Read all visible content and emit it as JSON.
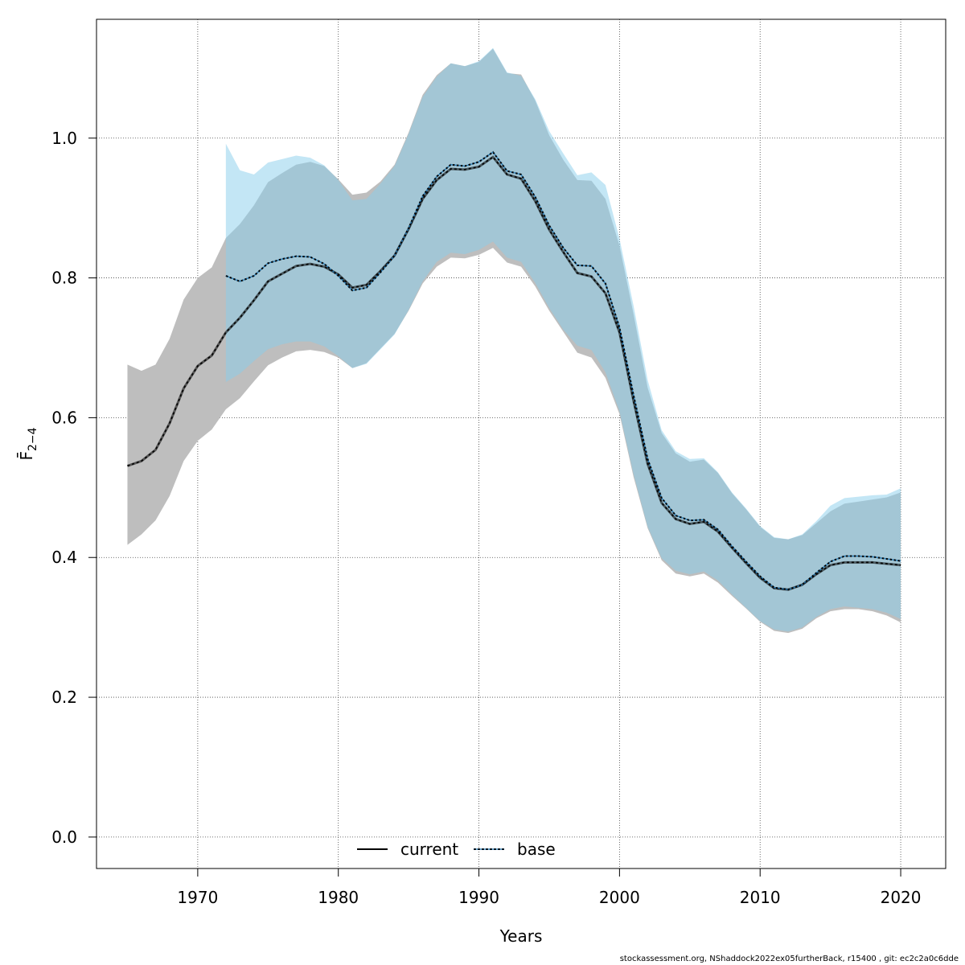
{
  "chart_data": {
    "type": "area",
    "xlabel": "Years",
    "ylabel": "F̄",
    "ylabel_subscript": "2−4",
    "xlim": [
      1962.8,
      2023.2
    ],
    "ylim": [
      -0.045,
      1.17
    ],
    "xticks": [
      1970,
      1980,
      1990,
      2000,
      2010,
      2020
    ],
    "yticks": [
      0.0,
      0.2,
      0.4,
      0.6,
      0.8,
      1.0
    ],
    "xtick_labels": [
      "1970",
      "1980",
      "1990",
      "2000",
      "2010",
      "2020"
    ],
    "ytick_labels": [
      "0.0",
      "0.2",
      "0.4",
      "0.6",
      "0.8",
      "1.0"
    ],
    "grid": true,
    "legend_position": "bottom-center",
    "colors": {
      "current_band": "#bebebe",
      "base_band": "#87CEEB",
      "overlap_band": "#a3c1d1",
      "current_line": "#000000",
      "base_line_dash": "#1f77b4"
    },
    "series": [
      {
        "name": "current",
        "style": "solid",
        "x": [
          1965,
          1966,
          1967,
          1968,
          1969,
          1970,
          1971,
          1972,
          1973,
          1974,
          1975,
          1976,
          1977,
          1978,
          1979,
          1980,
          1981,
          1982,
          1983,
          1984,
          1985,
          1986,
          1987,
          1988,
          1989,
          1990,
          1991,
          1992,
          1993,
          1994,
          1995,
          1996,
          1997,
          1998,
          1999,
          2000,
          2001,
          2002,
          2003,
          2004,
          2005,
          2006,
          2007,
          2008,
          2009,
          2010,
          2011,
          2012,
          2013,
          2014,
          2015,
          2016,
          2017,
          2018,
          2019,
          2020
        ],
        "y": [
          0.531,
          0.538,
          0.554,
          0.592,
          0.642,
          0.674,
          0.689,
          0.722,
          0.743,
          0.768,
          0.795,
          0.806,
          0.817,
          0.82,
          0.816,
          0.805,
          0.786,
          0.79,
          0.81,
          0.832,
          0.87,
          0.913,
          0.94,
          0.956,
          0.955,
          0.959,
          0.973,
          0.948,
          0.942,
          0.91,
          0.869,
          0.837,
          0.807,
          0.802,
          0.778,
          0.722,
          0.624,
          0.534,
          0.478,
          0.455,
          0.448,
          0.451,
          0.437,
          0.414,
          0.392,
          0.371,
          0.356,
          0.354,
          0.361,
          0.376,
          0.389,
          0.393,
          0.393,
          0.393,
          0.391,
          0.389
        ],
        "lower": [
          0.418,
          0.433,
          0.453,
          0.488,
          0.538,
          0.567,
          0.583,
          0.612,
          0.628,
          0.652,
          0.675,
          0.686,
          0.695,
          0.697,
          0.694,
          0.686,
          0.671,
          0.678,
          0.699,
          0.72,
          0.753,
          0.792,
          0.816,
          0.829,
          0.828,
          0.833,
          0.843,
          0.822,
          0.816,
          0.788,
          0.753,
          0.723,
          0.693,
          0.686,
          0.657,
          0.605,
          0.515,
          0.442,
          0.396,
          0.377,
          0.373,
          0.377,
          0.364,
          0.345,
          0.327,
          0.308,
          0.295,
          0.292,
          0.298,
          0.313,
          0.323,
          0.326,
          0.326,
          0.323,
          0.317,
          0.307
        ],
        "upper": [
          0.676,
          0.667,
          0.676,
          0.713,
          0.769,
          0.8,
          0.815,
          0.857,
          0.877,
          0.904,
          0.937,
          0.95,
          0.962,
          0.966,
          0.96,
          0.941,
          0.919,
          0.922,
          0.938,
          0.962,
          1.008,
          1.062,
          1.09,
          1.107,
          1.103,
          1.109,
          1.128,
          1.093,
          1.091,
          1.054,
          1.004,
          0.969,
          0.94,
          0.939,
          0.913,
          0.846,
          0.748,
          0.643,
          0.578,
          0.549,
          0.537,
          0.54,
          0.521,
          0.492,
          0.469,
          0.444,
          0.428,
          0.426,
          0.432,
          0.449,
          0.466,
          0.477,
          0.48,
          0.483,
          0.486,
          0.493
        ]
      },
      {
        "name": "base",
        "style": "dotted",
        "x": [
          1972,
          1973,
          1974,
          1975,
          1976,
          1977,
          1978,
          1979,
          1980,
          1981,
          1982,
          1983,
          1984,
          1985,
          1986,
          1987,
          1988,
          1989,
          1990,
          1991,
          1992,
          1993,
          1994,
          1995,
          1996,
          1997,
          1998,
          1999,
          2000,
          2001,
          2002,
          2003,
          2004,
          2005,
          2006,
          2007,
          2008,
          2009,
          2010,
          2011,
          2012,
          2013,
          2014,
          2015,
          2016,
          2017,
          2018,
          2019,
          2020
        ],
        "y": [
          0.803,
          0.795,
          0.803,
          0.821,
          0.827,
          0.831,
          0.83,
          0.82,
          0.803,
          0.782,
          0.786,
          0.808,
          0.832,
          0.871,
          0.917,
          0.945,
          0.962,
          0.96,
          0.966,
          0.98,
          0.953,
          0.948,
          0.916,
          0.875,
          0.843,
          0.818,
          0.817,
          0.792,
          0.729,
          0.632,
          0.541,
          0.485,
          0.46,
          0.453,
          0.454,
          0.44,
          0.416,
          0.394,
          0.373,
          0.357,
          0.354,
          0.361,
          0.378,
          0.394,
          0.402,
          0.402,
          0.401,
          0.398,
          0.395
        ],
        "lower": [
          0.651,
          0.663,
          0.681,
          0.698,
          0.705,
          0.709,
          0.709,
          0.702,
          0.688,
          0.671,
          0.677,
          0.698,
          0.719,
          0.754,
          0.795,
          0.823,
          0.836,
          0.834,
          0.84,
          0.852,
          0.829,
          0.823,
          0.793,
          0.757,
          0.726,
          0.703,
          0.697,
          0.665,
          0.609,
          0.519,
          0.444,
          0.399,
          0.381,
          0.376,
          0.38,
          0.367,
          0.347,
          0.328,
          0.309,
          0.297,
          0.294,
          0.3,
          0.315,
          0.326,
          0.33,
          0.328,
          0.326,
          0.321,
          0.312
        ],
        "upper": [
          0.992,
          0.954,
          0.948,
          0.965,
          0.97,
          0.975,
          0.972,
          0.961,
          0.94,
          0.911,
          0.913,
          0.935,
          0.96,
          1.006,
          1.059,
          1.088,
          1.107,
          1.103,
          1.11,
          1.129,
          1.094,
          1.089,
          1.056,
          1.01,
          0.978,
          0.947,
          0.951,
          0.933,
          0.856,
          0.76,
          0.654,
          0.582,
          0.552,
          0.541,
          0.542,
          0.522,
          0.493,
          0.47,
          0.445,
          0.429,
          0.426,
          0.433,
          0.452,
          0.474,
          0.485,
          0.487,
          0.489,
          0.49,
          0.499
        ]
      }
    ]
  },
  "legend": {
    "current_label": "current",
    "base_label": "base"
  },
  "footer": {
    "text": "stockassessment.org, NShaddock2022ex05furtherBack, r15400 , git: ec2c2a0c6dde"
  }
}
